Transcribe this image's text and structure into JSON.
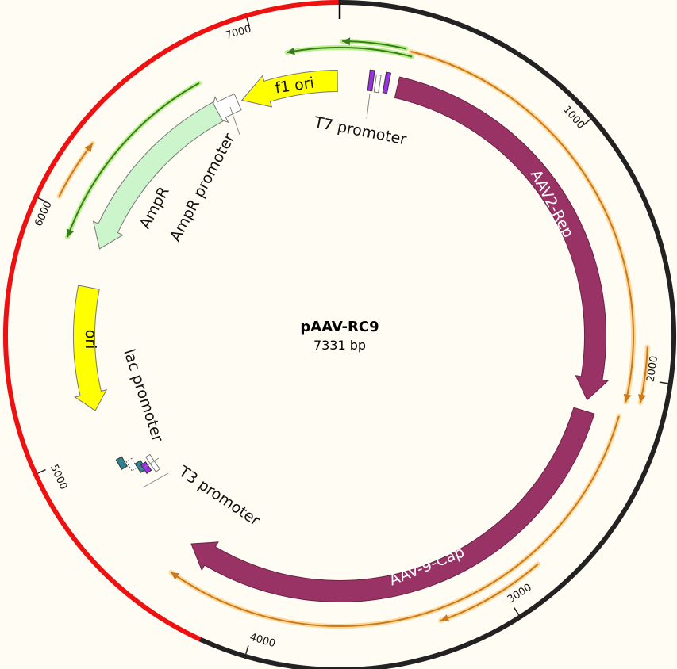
{
  "plasmid": {
    "name": "pAAV-RC9",
    "length_label": "7331 bp",
    "length": 7331
  },
  "ticks": [
    "1000",
    "2000",
    "3000",
    "4000",
    "5000",
    "6000",
    "7000"
  ],
  "colors": {
    "backbone": "#222222",
    "highlight": "#ee1111",
    "cds": "#993366",
    "ori": "#ffff00",
    "ampr": "#ccf5cc",
    "primer_orange": "#c87a1e",
    "primer_green": "#3a7a20",
    "promoter": "#ffffff",
    "t7": "#9b30e8",
    "lac": "#2f8090"
  },
  "features": {
    "rep": "AAV2-Rep",
    "cap": "AAV-9-Cap",
    "f1": "f1 ori",
    "ampr": "AmpR",
    "ampr_promoter": "AmpR promoter",
    "ori": "ori",
    "lac_promoter": "lac promoter",
    "t3_promoter": "T3 promoter",
    "t7_promoter": "T7 promoter"
  }
}
